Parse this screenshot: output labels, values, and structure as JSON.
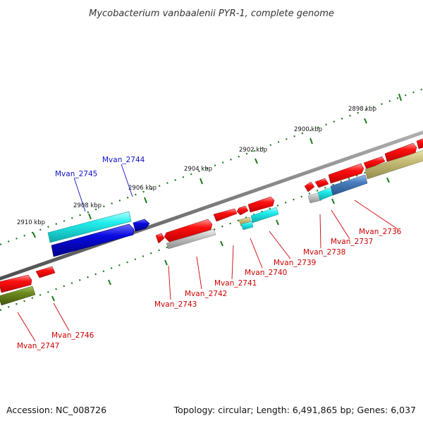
{
  "title": "Mycobacterium vanbaalenii PYR-1, complete genome",
  "ticks": [
    "2898 kbp",
    "2900 kbp",
    "2902 kbp",
    "2904 kbp",
    "2906 kbp",
    "2908 kbp",
    "2910 kbp"
  ],
  "genes": {
    "mvan_2744": "Mvan_2744",
    "mvan_2745": "Mvan_2745",
    "mvan_2736": "Mvan_2736",
    "mvan_2737": "Mvan_2737",
    "mvan_2738": "Mvan_2738",
    "mvan_2739": "Mvan_2739",
    "mvan_2740": "Mvan_2740",
    "mvan_2741": "Mvan_2741",
    "mvan_2742": "Mvan_2742",
    "mvan_2743": "Mvan_2743",
    "mvan_2746": "Mvan_2746",
    "mvan_2747": "Mvan_2747"
  },
  "footer": {
    "accession": "Accession: NC_008726",
    "topology": "Topology: circular; Length: 6,491,865 bp; Genes: 6,037"
  },
  "colors": {
    "red": "#ff1010",
    "blue": "#0a0ae0",
    "cyan": "#22eeee",
    "olive": "#6e8a1e",
    "khaki": "#c8c07a",
    "steel": "#4a7fbf",
    "gray": "#c8c8c8",
    "backbone": "#7a7a7a",
    "tickmark": "#1a7a1a"
  }
}
